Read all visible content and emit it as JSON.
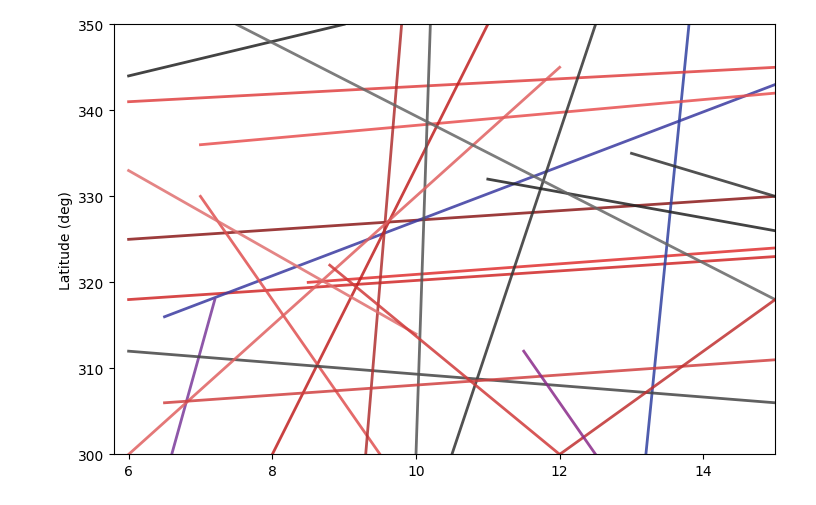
{
  "chart_data": {
    "type": "line",
    "y_label": "Latitude (deg)",
    "xlim": [
      5.8,
      15.0
    ],
    "xticks": [
      6,
      8,
      10,
      12,
      14
    ],
    "ylim": [
      300,
      350
    ],
    "yticks": [
      300,
      310,
      320,
      330,
      340,
      350
    ],
    "grid": false,
    "series": [
      {
        "color": "#8b1a1a",
        "x": [
          6.0,
          15.0
        ],
        "values": [
          325,
          330
        ]
      },
      {
        "color": "#e03030",
        "x": [
          8.5,
          15.0
        ],
        "values": [
          320,
          324
        ]
      },
      {
        "color": "#d02828",
        "x": [
          6.0,
          15.0
        ],
        "values": [
          318,
          323
        ]
      },
      {
        "color": "#3a3aa0",
        "x": [
          6.5,
          15.0
        ],
        "values": [
          316,
          343
        ]
      },
      {
        "color": "#3040a0",
        "x": [
          13.8,
          13.2
        ],
        "values": [
          350,
          300
        ]
      },
      {
        "color": "#7a3a9a",
        "x": [
          6.6,
          7.2
        ],
        "values": [
          300,
          318
        ]
      },
      {
        "color": "#e04040",
        "x": [
          6.0,
          15.0
        ],
        "values": [
          341,
          345
        ]
      },
      {
        "color": "#e85050",
        "x": [
          7.0,
          15.0
        ],
        "values": [
          336,
          342
        ]
      },
      {
        "color": "#222222",
        "x": [
          6.0,
          9.0
        ],
        "values": [
          344,
          350
        ]
      },
      {
        "color": "#c02020",
        "x": [
          8.0,
          11.0
        ],
        "values": [
          300,
          350
        ]
      },
      {
        "color": "#333333",
        "x": [
          10.5,
          12.5
        ],
        "values": [
          300,
          350
        ]
      },
      {
        "color": "#e05050",
        "x": [
          9.5,
          7.0
        ],
        "values": [
          300,
          330
        ]
      },
      {
        "color": "#444444",
        "x": [
          6.0,
          15.0
        ],
        "values": [
          312,
          306
        ]
      },
      {
        "color": "#b03030",
        "x": [
          9.8,
          9.3
        ],
        "values": [
          350,
          300
        ]
      },
      {
        "color": "#555555",
        "x": [
          10.2,
          10.0
        ],
        "values": [
          350,
          300
        ]
      },
      {
        "color": "#e06060",
        "x": [
          6.0,
          12.0
        ],
        "values": [
          300,
          345
        ]
      },
      {
        "color": "#222222",
        "x": [
          11.0,
          15.0
        ],
        "values": [
          332,
          326
        ]
      },
      {
        "color": "#d04040",
        "x": [
          6.5,
          15.0
        ],
        "values": [
          306,
          311
        ]
      },
      {
        "color": "#666666",
        "x": [
          7.5,
          15.0
        ],
        "values": [
          350,
          318
        ]
      },
      {
        "color": "#c03030",
        "x": [
          12.0,
          15.0
        ],
        "values": [
          300,
          318
        ]
      },
      {
        "color": "#8a2a8a",
        "x": [
          12.5,
          11.5
        ],
        "values": [
          300,
          312
        ]
      },
      {
        "color": "#e07070",
        "x": [
          6.0,
          10.0
        ],
        "values": [
          333,
          314
        ]
      },
      {
        "color": "#333333",
        "x": [
          13.0,
          15.0
        ],
        "values": [
          335,
          330
        ]
      },
      {
        "color": "#d03a3a",
        "x": [
          8.8,
          12.0
        ],
        "values": [
          322,
          300
        ]
      }
    ]
  }
}
